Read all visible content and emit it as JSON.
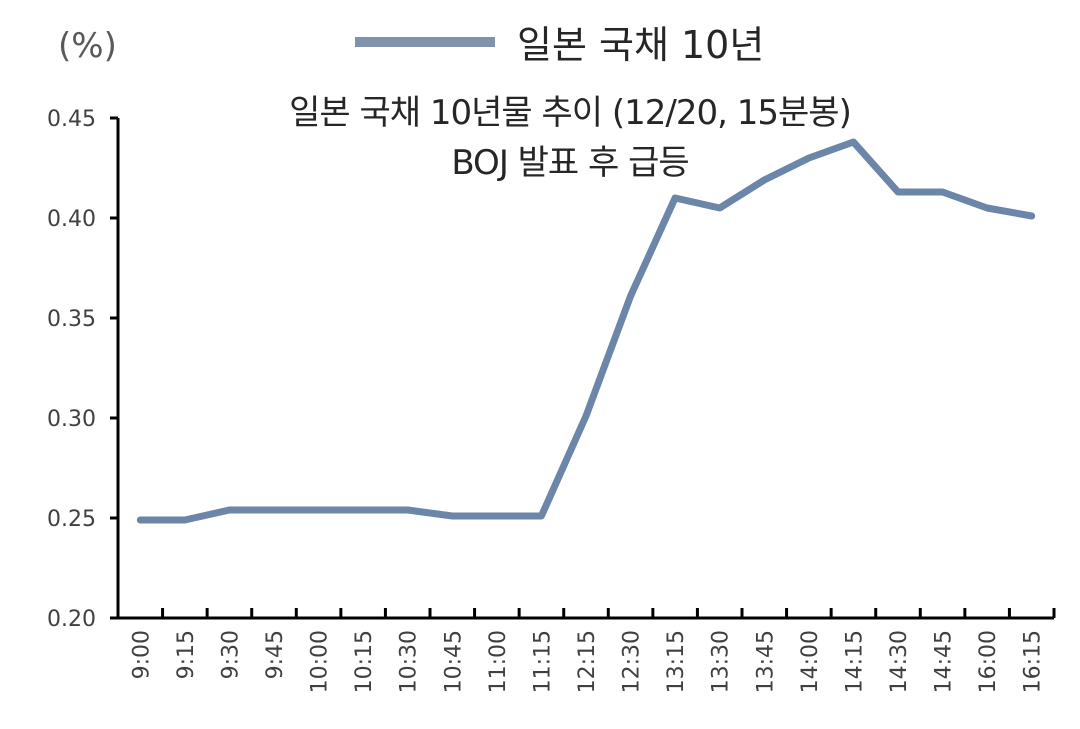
{
  "chart_data": {
    "type": "line",
    "title": "일본 국채 10년물 추이 (12/20, 15분봉)",
    "subtitle": "BOJ 발표 후 급등",
    "ylabel": "(%)",
    "xlabel": "",
    "ylim": [
      0.2,
      0.45
    ],
    "yticks": [
      "0.45",
      "0.40",
      "0.35",
      "0.30",
      "0.25",
      "0.20"
    ],
    "legend_position": "top",
    "grid": false,
    "categories": [
      "9:00",
      "9:15",
      "9:30",
      "9:45",
      "10:00",
      "10:15",
      "10:30",
      "10:45",
      "11:00",
      "11:15",
      "12:15",
      "12:30",
      "13:15",
      "13:30",
      "13:45",
      "14:00",
      "14:15",
      "14:30",
      "14:45",
      "16:00",
      "16:15"
    ],
    "series": [
      {
        "name": "일본 국채 10년",
        "color": "#6b86a8",
        "values": [
          0.249,
          0.249,
          0.254,
          0.254,
          0.254,
          0.254,
          0.254,
          0.251,
          0.251,
          0.251,
          0.301,
          0.361,
          0.41,
          0.405,
          0.419,
          0.43,
          0.438,
          0.413,
          0.413,
          0.405,
          0.401
        ]
      }
    ]
  },
  "legend": {
    "label": "일본 국채 10년"
  },
  "unit": "(%)"
}
